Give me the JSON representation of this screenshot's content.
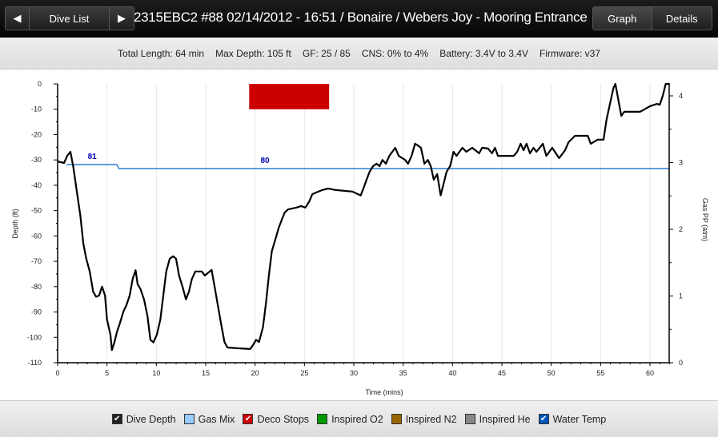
{
  "header": {
    "prev_icon": "triangle-left-icon",
    "dive_list_label": "Dive List",
    "next_icon": "triangle-right-icon",
    "title": "2315EBC2 #88 02/14/2012 - 16:51  / Bonaire / Webers Joy - Mooring Entrance",
    "tabs": [
      {
        "label": "Graph",
        "active": true
      },
      {
        "label": "Details",
        "active": false
      }
    ]
  },
  "info": {
    "total_length": "Total Length: 64 min",
    "max_depth": "Max Depth: 105 ft",
    "gf": "GF: 25 / 85",
    "cns": "CNS: 0% to 4%",
    "battery": "Battery: 3.4V to 3.4V",
    "firmware": "Firmware: v37"
  },
  "chart_data": {
    "type": "line",
    "xlabel": "Time (mins)",
    "ylabel": "Depth (ft)",
    "y2label": "Gas PP (atm)",
    "xlim": [
      0,
      62.5
    ],
    "ylim": [
      -110,
      0
    ],
    "y2lim": [
      0,
      4.2
    ],
    "xticks": [
      "0",
      "5",
      "10",
      "15",
      "20",
      "25",
      "30",
      "35",
      "40",
      "45",
      "50",
      "55",
      "60"
    ],
    "yticks": [
      "0",
      "-10",
      "-20",
      "-30",
      "-40",
      "-50",
      "-60",
      "-70",
      "-80",
      "-90",
      "-100",
      "-110"
    ],
    "y2ticks": [
      "0",
      "1",
      "2",
      "3",
      "4"
    ],
    "grid": "vertical",
    "depth": {
      "color": "#000000",
      "points": [
        [
          0,
          -30.6
        ],
        [
          0.65,
          -31.2
        ],
        [
          0.97,
          -28.4
        ],
        [
          1.3,
          -26.8
        ],
        [
          1.6,
          -33
        ],
        [
          1.95,
          -42.5
        ],
        [
          2.3,
          -52
        ],
        [
          2.6,
          -63
        ],
        [
          2.9,
          -69
        ],
        [
          3.25,
          -74
        ],
        [
          3.6,
          -82
        ],
        [
          3.9,
          -84
        ],
        [
          4.2,
          -83.5
        ],
        [
          4.5,
          -80
        ],
        [
          4.8,
          -83.5
        ],
        [
          5.0,
          -93
        ],
        [
          5.35,
          -99
        ],
        [
          5.5,
          -105
        ],
        [
          5.75,
          -102
        ],
        [
          6.0,
          -98
        ],
        [
          6.3,
          -94.5
        ],
        [
          6.65,
          -90
        ],
        [
          7.0,
          -87
        ],
        [
          7.3,
          -83.5
        ],
        [
          7.6,
          -77
        ],
        [
          7.9,
          -73.5
        ],
        [
          8.1,
          -79
        ],
        [
          8.4,
          -81
        ],
        [
          8.75,
          -85
        ],
        [
          9.1,
          -91.5
        ],
        [
          9.4,
          -101
        ],
        [
          9.7,
          -102
        ],
        [
          10.05,
          -99
        ],
        [
          10.4,
          -93
        ],
        [
          10.7,
          -83.5
        ],
        [
          11.0,
          -74
        ],
        [
          11.35,
          -69
        ],
        [
          11.7,
          -68
        ],
        [
          12.0,
          -69
        ],
        [
          12.3,
          -75.6
        ],
        [
          12.65,
          -80
        ],
        [
          13.0,
          -85
        ],
        [
          13.3,
          -82
        ],
        [
          13.6,
          -77
        ],
        [
          13.95,
          -74
        ],
        [
          14.6,
          -74
        ],
        [
          14.9,
          -75.6
        ],
        [
          15.6,
          -73.4
        ],
        [
          15.9,
          -80
        ],
        [
          16.2,
          -86.7
        ],
        [
          16.55,
          -94.5
        ],
        [
          16.9,
          -101.8
        ],
        [
          17.2,
          -104
        ],
        [
          18.2,
          -104.3
        ],
        [
          19.5,
          -104.6
        ],
        [
          19.8,
          -103
        ],
        [
          20.1,
          -101
        ],
        [
          20.4,
          -101.8
        ],
        [
          20.8,
          -96
        ],
        [
          21.1,
          -86.7
        ],
        [
          21.4,
          -75.6
        ],
        [
          21.7,
          -66
        ],
        [
          22.05,
          -61.5
        ],
        [
          22.4,
          -56.7
        ],
        [
          22.7,
          -53.6
        ],
        [
          23.0,
          -50.7
        ],
        [
          23.35,
          -49.5
        ],
        [
          24.2,
          -48.8
        ],
        [
          24.65,
          -48.2
        ],
        [
          25.1,
          -48.8
        ],
        [
          25.5,
          -46.3
        ],
        [
          25.8,
          -43.5
        ],
        [
          26.8,
          -41.9
        ],
        [
          27.4,
          -41.3
        ],
        [
          28.2,
          -41.9
        ],
        [
          29.85,
          -42.5
        ],
        [
          30.7,
          -44
        ],
        [
          31.0,
          -41
        ],
        [
          31.3,
          -37.8
        ],
        [
          31.6,
          -34.7
        ],
        [
          31.95,
          -32.5
        ],
        [
          32.3,
          -31.5
        ],
        [
          32.6,
          -32.5
        ],
        [
          32.9,
          -30
        ],
        [
          33.25,
          -31.5
        ],
        [
          33.6,
          -28.4
        ],
        [
          34.2,
          -25.2
        ],
        [
          34.55,
          -28.4
        ],
        [
          35.2,
          -30
        ],
        [
          35.5,
          -31.5
        ],
        [
          35.85,
          -28.4
        ],
        [
          36.2,
          -23.6
        ],
        [
          36.5,
          -24.3
        ],
        [
          36.8,
          -25.2
        ],
        [
          37.15,
          -31.5
        ],
        [
          37.5,
          -30
        ],
        [
          37.8,
          -32.5
        ],
        [
          38.1,
          -37.8
        ],
        [
          38.45,
          -35.6
        ],
        [
          38.8,
          -44
        ],
        [
          39.1,
          -39.4
        ],
        [
          39.4,
          -34.7
        ],
        [
          39.75,
          -32.5
        ],
        [
          40.1,
          -26.8
        ],
        [
          40.4,
          -28.4
        ],
        [
          41.0,
          -25.2
        ],
        [
          41.4,
          -26.8
        ],
        [
          42.0,
          -25.2
        ],
        [
          42.7,
          -27.4
        ],
        [
          43.0,
          -25.2
        ],
        [
          43.6,
          -25.5
        ],
        [
          44.0,
          -27.4
        ],
        [
          44.3,
          -25.2
        ],
        [
          44.6,
          -28.4
        ],
        [
          45.25,
          -28.4
        ],
        [
          46.2,
          -28.4
        ],
        [
          46.55,
          -26.8
        ],
        [
          46.9,
          -23.6
        ],
        [
          47.2,
          -26.2
        ],
        [
          47.5,
          -23.6
        ],
        [
          47.85,
          -27.4
        ],
        [
          48.2,
          -25.2
        ],
        [
          48.5,
          -26.8
        ],
        [
          49.15,
          -23.6
        ],
        [
          49.5,
          -28.4
        ],
        [
          50.1,
          -25.2
        ],
        [
          50.8,
          -29.3
        ],
        [
          51.4,
          -26.2
        ],
        [
          51.75,
          -23
        ],
        [
          52.4,
          -20.5
        ],
        [
          53.0,
          -20.5
        ],
        [
          53.7,
          -20.5
        ],
        [
          54.0,
          -23.6
        ],
        [
          54.7,
          -22
        ],
        [
          55.3,
          -22
        ],
        [
          55.6,
          -14.2
        ],
        [
          55.95,
          -7.9
        ],
        [
          56.3,
          -1.6
        ],
        [
          56.5,
          0
        ],
        [
          56.8,
          -6.3
        ],
        [
          57.1,
          -12.6
        ],
        [
          57.4,
          -11
        ],
        [
          58.4,
          -11
        ],
        [
          59.0,
          -11
        ],
        [
          60.0,
          -8.8
        ],
        [
          60.7,
          -7.9
        ],
        [
          61.0,
          -8.2
        ],
        [
          61.3,
          -4.7
        ],
        [
          61.6,
          0
        ],
        [
          62,
          0
        ]
      ]
    },
    "deco_stop": {
      "color": "#cc0000",
      "start": 19.4,
      "end": 27.5,
      "depth_top": 0,
      "depth_bottom": -10
    },
    "water_temp": {
      "color": "#0066cc",
      "label_color": "#0000aa",
      "points": [
        [
          0.9,
          81
        ],
        [
          6.0,
          81
        ],
        [
          6.2,
          80
        ],
        [
          62,
          80
        ]
      ],
      "labels": [
        {
          "text": "81",
          "x": 3.5
        },
        {
          "text": "80",
          "x": 21
        }
      ]
    }
  },
  "legend": [
    {
      "label": "Dive Depth",
      "color": "#222222",
      "checked": true
    },
    {
      "label": "Gas Mix",
      "color": "#99ccff",
      "checked": false
    },
    {
      "label": "Deco Stops",
      "color": "#cc0000",
      "checked": true
    },
    {
      "label": "Inspired O2",
      "color": "#009900",
      "checked": false
    },
    {
      "label": "Inspired N2",
      "color": "#996600",
      "checked": false
    },
    {
      "label": "Inspired He",
      "color": "#888888",
      "checked": false
    },
    {
      "label": "Water Temp",
      "color": "#0055bb",
      "checked": true
    }
  ]
}
